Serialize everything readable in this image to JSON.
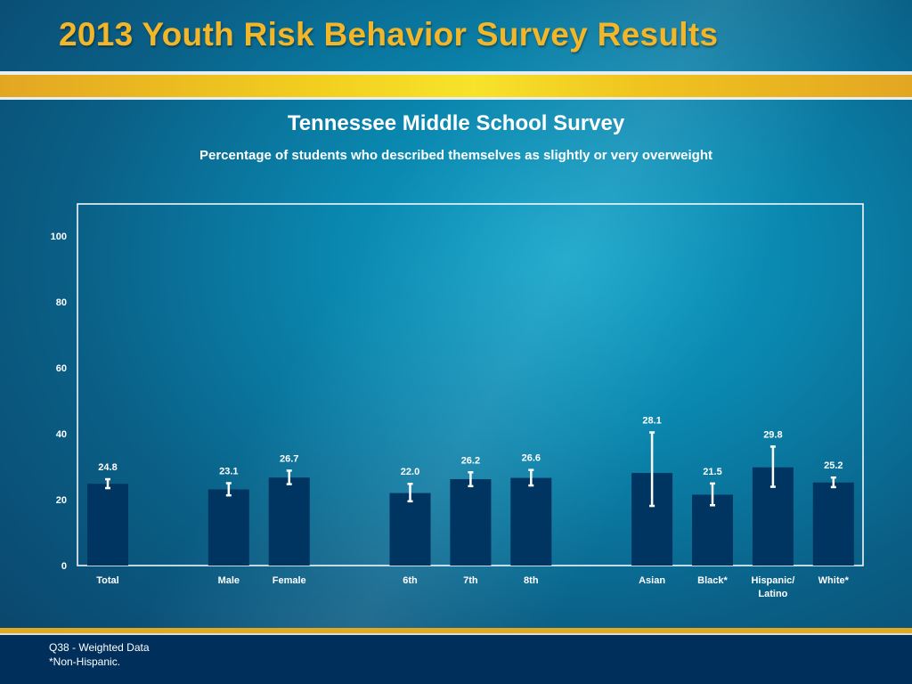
{
  "header": {
    "title": "2013 Youth Risk Behavior Survey Results"
  },
  "chart_data": {
    "type": "bar",
    "title": "Tennessee Middle School Survey",
    "subtitle": "Percentage of students who described themselves as slightly or very overweight",
    "xlabel": "",
    "ylabel": "",
    "ylim": [
      0,
      110
    ],
    "yticks": [
      0,
      20,
      40,
      60,
      80,
      100
    ],
    "grid": false,
    "groups": [
      [
        "Total"
      ],
      [
        "Male",
        "Female"
      ],
      [
        "6th",
        "7th",
        "8th"
      ],
      [
        "Asian",
        "Black*",
        "Hispanic/ Latino",
        "White*"
      ]
    ],
    "categories": [
      "Total",
      "Male",
      "Female",
      "6th",
      "7th",
      "8th",
      "Asian",
      "Black*",
      "Hispanic/ Latino",
      "White*"
    ],
    "values": [
      24.8,
      23.1,
      26.7,
      22.0,
      26.2,
      26.6,
      28.1,
      21.5,
      29.8,
      25.2
    ],
    "value_labels": [
      "24.8",
      "23.1",
      "26.7",
      "22.0",
      "26.2",
      "26.6",
      "28.1",
      "21.5",
      "29.8",
      "25.2"
    ],
    "ci_low": [
      23.5,
      21.3,
      24.7,
      19.5,
      24.1,
      24.3,
      18.1,
      18.3,
      23.9,
      23.8
    ],
    "ci_high": [
      26.2,
      25.0,
      28.8,
      24.8,
      28.3,
      29.0,
      40.4,
      24.9,
      36.1,
      26.7
    ],
    "bar_color": "#003461",
    "errorbar_color": "#ffffff"
  },
  "footer": {
    "note1": "Q38 - Weighted Data",
    "note2": "*Non-Hispanic."
  }
}
